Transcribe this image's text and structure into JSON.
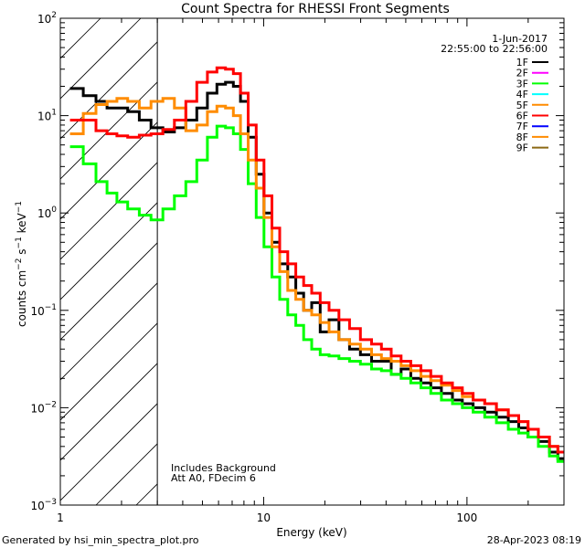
{
  "chart_data": {
    "type": "line",
    "title": "Count Spectra for RHESSI Front Segments",
    "xlabel": "Energy (keV)",
    "ylabel": "counts cm^-2 s^-1 keV^-1",
    "ylabel_parts": [
      "counts cm",
      "−2",
      " s",
      "−1",
      " keV",
      "−1"
    ],
    "xscale": "log",
    "yscale": "log",
    "xlim": [
      1,
      300
    ],
    "ylim": [
      0.001,
      100
    ],
    "x_tick_labels": [
      {
        "value": 1,
        "label": "1"
      },
      {
        "value": 10,
        "label": "10"
      },
      {
        "value": 100,
        "label": "100"
      }
    ],
    "y_tick_labels": [
      {
        "value": 0.001,
        "base": "10",
        "exp": "−3"
      },
      {
        "value": 0.01,
        "base": "10",
        "exp": "−2"
      },
      {
        "value": 0.1,
        "base": "10",
        "exp": "−1"
      },
      {
        "value": 1,
        "base": "10",
        "exp": "0"
      },
      {
        "value": 10,
        "base": "10",
        "exp": "1"
      },
      {
        "value": 100,
        "base": "10",
        "exp": "2"
      }
    ],
    "hatched_region_max_energy": 3,
    "date": "1-Jun-2017",
    "time_range": "22:55:00 to 22:56:00",
    "annotations": [
      "Includes Background",
      "Att A0, FDecim 6"
    ],
    "legend": [
      {
        "name": "1F",
        "color": "#000000"
      },
      {
        "name": "2F",
        "color": "#ff00ff"
      },
      {
        "name": "3F",
        "color": "#00ff00"
      },
      {
        "name": "4F",
        "color": "#00ffff"
      },
      {
        "name": "5F",
        "color": "#ff8c00"
      },
      {
        "name": "6F",
        "color": "#ff0000"
      },
      {
        "name": "7F",
        "color": "#0000ff"
      },
      {
        "name": "8F",
        "color": "#ff8c00"
      },
      {
        "name": "9F",
        "color": "#8b6914"
      }
    ],
    "series": [
      {
        "name": "1F",
        "color": "#000000",
        "x": [
          1.2,
          1.4,
          1.6,
          1.8,
          2.0,
          2.3,
          2.6,
          3.0,
          3.4,
          3.9,
          4.4,
          5.0,
          5.6,
          6.2,
          6.8,
          7.4,
          8.0,
          8.8,
          9.6,
          10.5,
          11.5,
          12.5,
          13.8,
          15.0,
          16.5,
          18.0,
          20.0,
          22.0,
          25.0,
          28.0,
          32.0,
          36.0,
          40.0,
          45.0,
          50.0,
          56.0,
          63.0,
          70.0,
          80.0,
          90.0,
          100.0,
          115.0,
          130.0,
          150.0,
          170.0,
          190.0,
          210.0,
          240.0,
          270.0,
          290.0
        ],
        "y": [
          19,
          16,
          14,
          12,
          12,
          11,
          9,
          7.5,
          6.8,
          7.5,
          9,
          12,
          17,
          21,
          22,
          20,
          14,
          6,
          2.5,
          1.0,
          0.5,
          0.3,
          0.22,
          0.15,
          0.1,
          0.12,
          0.06,
          0.08,
          0.05,
          0.04,
          0.035,
          0.03,
          0.03,
          0.022,
          0.025,
          0.02,
          0.018,
          0.016,
          0.014,
          0.012,
          0.011,
          0.01,
          0.009,
          0.008,
          0.0072,
          0.0062,
          0.005,
          0.0045,
          0.0035,
          0.003
        ]
      },
      {
        "name": "3F",
        "color": "#00ff00",
        "x": [
          1.2,
          1.4,
          1.6,
          1.8,
          2.0,
          2.3,
          2.6,
          3.0,
          3.4,
          3.9,
          4.4,
          5.0,
          5.6,
          6.2,
          6.8,
          7.4,
          8.0,
          8.8,
          9.6,
          10.5,
          11.5,
          12.5,
          13.8,
          15.0,
          16.5,
          18.0,
          20.0,
          22.0,
          25.0,
          28.0,
          32.0,
          36.0,
          40.0,
          45.0,
          50.0,
          56.0,
          63.0,
          70.0,
          80.0,
          90.0,
          100.0,
          115.0,
          130.0,
          150.0,
          170.0,
          190.0,
          210.0,
          240.0,
          270.0,
          290.0
        ],
        "y": [
          4.8,
          3.2,
          2.1,
          1.6,
          1.3,
          1.1,
          0.95,
          0.85,
          1.1,
          1.5,
          2.1,
          3.5,
          6.0,
          7.8,
          7.5,
          6.5,
          4.5,
          2.0,
          0.9,
          0.45,
          0.22,
          0.13,
          0.09,
          0.07,
          0.05,
          0.04,
          0.035,
          0.034,
          0.032,
          0.03,
          0.028,
          0.025,
          0.024,
          0.022,
          0.02,
          0.018,
          0.016,
          0.014,
          0.012,
          0.011,
          0.01,
          0.009,
          0.008,
          0.007,
          0.006,
          0.0055,
          0.005,
          0.004,
          0.0032,
          0.0028
        ]
      },
      {
        "name": "5F",
        "color": "#ff8c00",
        "x": [
          1.2,
          1.4,
          1.6,
          1.8,
          2.0,
          2.3,
          2.6,
          3.0,
          3.4,
          3.9,
          4.4,
          5.0,
          5.6,
          6.2,
          6.8,
          7.4,
          8.0,
          8.8,
          9.6,
          10.5,
          11.5,
          12.5,
          13.8,
          15.0,
          16.5,
          18.0,
          20.0,
          22.0,
          25.0,
          28.0,
          32.0,
          36.0,
          40.0,
          45.0,
          50.0,
          56.0,
          63.0,
          70.0,
          80.0,
          90.0,
          100.0,
          115.0,
          130.0,
          150.0,
          170.0,
          190.0,
          210.0,
          240.0,
          270.0,
          290.0
        ],
        "y": [
          6.5,
          10.5,
          13,
          14,
          15,
          14,
          12,
          14,
          15,
          12,
          7,
          8,
          11,
          12.5,
          12,
          10,
          6.5,
          3.5,
          1.8,
          0.9,
          0.45,
          0.25,
          0.16,
          0.13,
          0.1,
          0.09,
          0.075,
          0.06,
          0.05,
          0.045,
          0.04,
          0.035,
          0.032,
          0.03,
          0.027,
          0.024,
          0.021,
          0.019,
          0.017,
          0.015,
          0.013,
          0.012,
          0.011,
          0.0095,
          0.0083,
          0.0072,
          0.006,
          0.005,
          0.004,
          0.0035
        ]
      },
      {
        "name": "6F",
        "color": "#ff0000",
        "x": [
          1.2,
          1.4,
          1.6,
          1.8,
          2.0,
          2.3,
          2.6,
          3.0,
          3.4,
          3.9,
          4.4,
          5.0,
          5.6,
          6.2,
          6.8,
          7.4,
          8.0,
          8.8,
          9.6,
          10.5,
          11.5,
          12.5,
          13.8,
          15.0,
          16.5,
          18.0,
          20.0,
          22.0,
          25.0,
          28.0,
          32.0,
          36.0,
          40.0,
          45.0,
          50.0,
          56.0,
          63.0,
          70.0,
          80.0,
          90.0,
          100.0,
          115.0,
          130.0,
          150.0,
          170.0,
          190.0,
          210.0,
          240.0,
          270.0,
          290.0
        ],
        "y": [
          9,
          9,
          7,
          6.5,
          6.2,
          6.0,
          6.3,
          6.5,
          7.2,
          9,
          14,
          22,
          28,
          31,
          30,
          27,
          17,
          8,
          3.5,
          1.5,
          0.7,
          0.4,
          0.3,
          0.22,
          0.18,
          0.15,
          0.12,
          0.1,
          0.08,
          0.065,
          0.05,
          0.045,
          0.04,
          0.034,
          0.03,
          0.027,
          0.024,
          0.021,
          0.018,
          0.016,
          0.014,
          0.012,
          0.011,
          0.0095,
          0.0083,
          0.0072,
          0.006,
          0.005,
          0.004,
          0.0035
        ]
      }
    ]
  }
}
